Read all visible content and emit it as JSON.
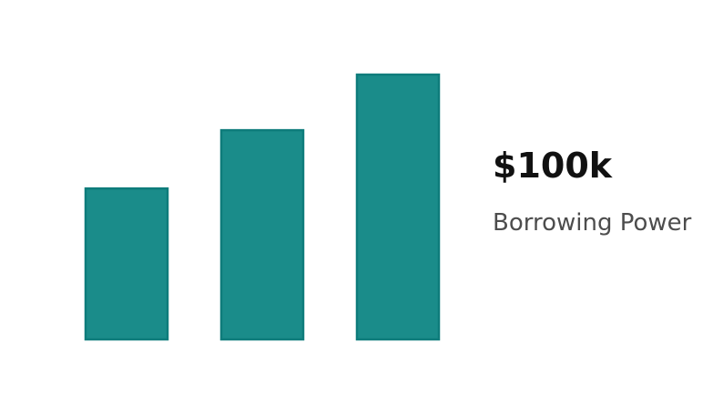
{
  "metric": {
    "value_label": "$100k",
    "caption": "Borrowing Power"
  },
  "chart_data": {
    "type": "bar",
    "title": "",
    "xlabel": "",
    "ylabel": "",
    "categories": [
      "",
      "",
      ""
    ],
    "values": [
      57,
      79,
      100
    ],
    "ylim": [
      0,
      100
    ],
    "grid": false,
    "colors": {
      "bar_fill": "#1a8c8a",
      "bar_stroke": "#0e7c7b"
    }
  }
}
